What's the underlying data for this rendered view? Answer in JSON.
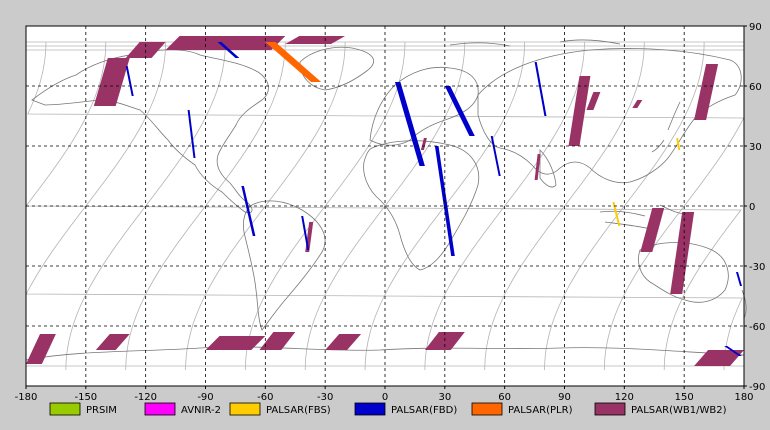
{
  "map": {
    "projection": "equirectangular",
    "lon_range": [
      -180,
      180
    ],
    "lat_range": [
      -90,
      90
    ],
    "gridlines": "dashed",
    "grid_lon_step": 30,
    "grid_lat_step": 30
  },
  "axes": {
    "x_ticks": [
      "-180",
      "-150",
      "-120",
      "-90",
      "-60",
      "-30",
      "0",
      "30",
      "60",
      "90",
      "120",
      "150",
      "180"
    ],
    "y_ticks": [
      "90",
      "60",
      "30",
      "0",
      "-30",
      "-60",
      "-90"
    ]
  },
  "legend": [
    {
      "label": "PRSIM",
      "color": "#99cc00"
    },
    {
      "label": "AVNIR-2",
      "color": "#ff00ff"
    },
    {
      "label": "PALSAR(FBS)",
      "color": "#ffcc00"
    },
    {
      "label": "PALSAR(FBD)",
      "color": "#0000cc"
    },
    {
      "label": "PALSAR(PLR)",
      "color": "#ff6600"
    },
    {
      "label": "PALSAR(WB1/WB2)",
      "color": "#993366"
    }
  ],
  "colors": {
    "frame": "#cbcbcb",
    "map_background": "#ffffff",
    "coastline": "#777777",
    "orbit_track": "#b4b4b4",
    "wb_swath": "#993366",
    "fbd_strip": "#0000cc",
    "fbs_strip": "#ffcc00",
    "plr_strip": "#ff6600"
  },
  "swaths": {
    "wb": [
      {
        "lon": [
          -146,
          -128
        ],
        "lat": [
          50,
          74
        ]
      },
      {
        "lon": [
          -130,
          -110
        ],
        "lat": [
          74,
          82
        ]
      },
      {
        "lon": [
          -110,
          -50
        ],
        "lat": [
          78,
          85
        ]
      },
      {
        "lon": [
          -50,
          -20
        ],
        "lat": [
          81,
          85
        ]
      },
      {
        "lon": [
          -40,
          -36
        ],
        "lat": [
          -23,
          -8
        ]
      },
      {
        "lon": [
          18,
          21
        ],
        "lat": [
          28,
          34
        ]
      },
      {
        "lon": [
          75,
          78
        ],
        "lat": [
          13,
          26
        ]
      },
      {
        "lon": [
          101,
          108
        ],
        "lat": [
          48,
          57
        ]
      },
      {
        "lon": [
          124,
          129
        ],
        "lat": [
          49,
          53
        ]
      },
      {
        "lon": [
          92,
          103
        ],
        "lat": [
          30,
          65
        ]
      },
      {
        "lon": [
          128,
          140
        ],
        "lat": [
          -23,
          -1
        ]
      },
      {
        "lon": [
          143,
          155
        ],
        "lat": [
          -44,
          -3
        ]
      },
      {
        "lon": [
          155,
          167
        ],
        "lat": [
          43,
          71
        ]
      },
      {
        "lon": [
          -180,
          -165
        ],
        "lat": [
          -79,
          -64
        ]
      },
      {
        "lon": [
          -145,
          -128
        ],
        "lat": [
          -72,
          -64
        ]
      },
      {
        "lon": [
          -90,
          -60
        ],
        "lat": [
          -72,
          -65
        ]
      },
      {
        "lon": [
          -63,
          -45
        ],
        "lat": [
          -72,
          -63
        ]
      },
      {
        "lon": [
          -30,
          -12
        ],
        "lat": [
          -72,
          -64
        ]
      },
      {
        "lon": [
          20,
          40
        ],
        "lat": [
          -72,
          -63
        ]
      },
      {
        "lon": [
          155,
          180
        ],
        "lat": [
          -80,
          -72
        ]
      }
    ],
    "fbd": [
      {
        "lon": [
          -130,
          -126
        ],
        "lat": [
          55,
          70
        ]
      },
      {
        "lon": [
          -99,
          -95
        ],
        "lat": [
          24,
          48
        ]
      },
      {
        "lon": [
          -72,
          -65
        ],
        "lat": [
          -15,
          10
        ]
      },
      {
        "lon": [
          -42,
          -38
        ],
        "lat": [
          -22,
          -5
        ]
      },
      {
        "lon": [
          5,
          20
        ],
        "lat": [
          20,
          62
        ]
      },
      {
        "lon": [
          25,
          35
        ],
        "lat": [
          -25,
          30
        ]
      },
      {
        "lon": [
          53,
          58
        ],
        "lat": [
          15,
          35
        ]
      },
      {
        "lon": [
          30,
          45
        ],
        "lat": [
          35,
          60
        ]
      },
      {
        "lon": [
          75,
          81
        ],
        "lat": [
          45,
          72
        ]
      },
      {
        "lon": [
          -84,
          -73
        ],
        "lat": [
          74,
          82
        ]
      },
      {
        "lon": [
          170,
          179
        ],
        "lat": [
          -75,
          -70
        ]
      },
      {
        "lon": [
          176,
          179
        ],
        "lat": [
          -40,
          -33
        ]
      }
    ],
    "fbs": [
      {
        "lon": [
          146,
          148
        ],
        "lat": [
          28,
          34
        ]
      },
      {
        "lon": [
          114,
          118
        ],
        "lat": [
          -10,
          2
        ]
      }
    ],
    "plr": [
      {
        "lon": [
          -60,
          -32
        ],
        "lat": [
          62,
          82
        ]
      }
    ]
  }
}
